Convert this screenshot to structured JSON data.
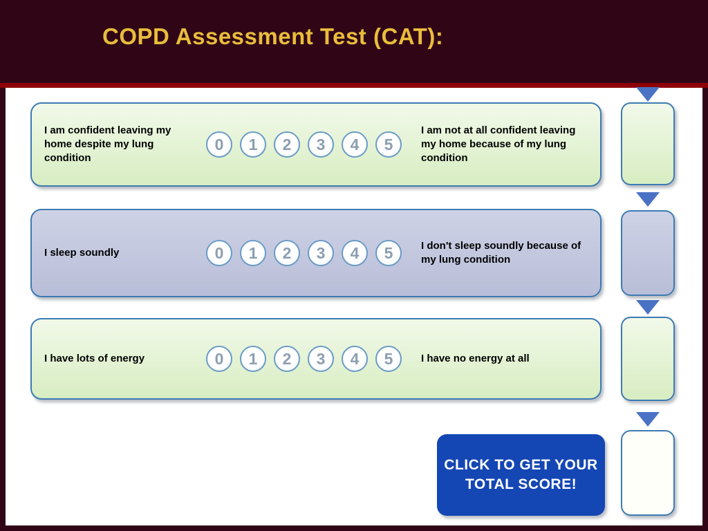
{
  "header": {
    "title": "COPD Assessment Test (CAT):"
  },
  "scale": [
    "0",
    "1",
    "2",
    "3",
    "4",
    "5"
  ],
  "questions": [
    {
      "left": "I am confident leaving my home despite my lung condition",
      "right": "I am not at all confident leaving my home because of my lung condition",
      "theme": "green"
    },
    {
      "left": "I sleep soundly",
      "right": "I don't sleep soundly because of my lung condition",
      "theme": "purple"
    },
    {
      "left": "I have lots of energy",
      "right": "I have no energy at all",
      "theme": "green"
    }
  ],
  "score_boxes": [
    {
      "theme": "green"
    },
    {
      "theme": "purple"
    },
    {
      "theme": "green"
    },
    {
      "theme": "white"
    }
  ],
  "total_button": {
    "label": "CLICK TO GET YOUR\nTOTAL SCORE!"
  },
  "colors": {
    "header_bg": "#300617",
    "title_text": "#e9bd3b",
    "divider": "#8e0003",
    "row_border": "#3d7ab2",
    "green_fill": "#d8edc2",
    "purple_fill": "#bcc1da",
    "arrow": "#4a72c4",
    "button_bg": "#1446b4",
    "button_text": "#ffffff"
  }
}
